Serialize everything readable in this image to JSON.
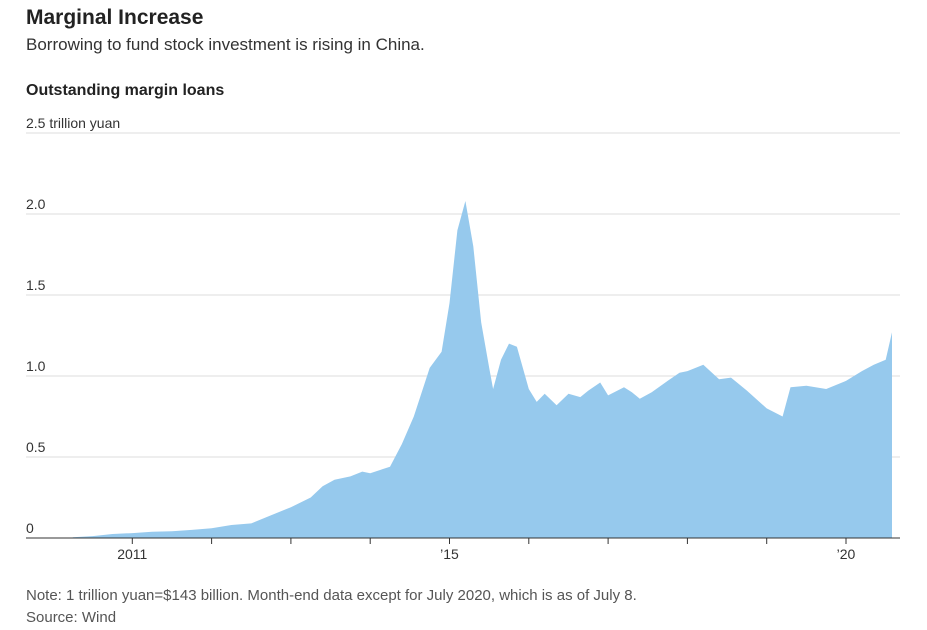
{
  "header": {
    "title": "Marginal Increase",
    "subtitle": "Borrowing to fund stock investment is rising in China."
  },
  "footer": {
    "note": "Note: 1 trillion yuan=$143 billion. Month-end data except for July 2020, which is as of July 8.",
    "source": "Source: Wind"
  },
  "chart_data": {
    "type": "area",
    "title": "Outstanding margin loans",
    "ylabel": "trillion yuan",
    "ylim": [
      0,
      2.5
    ],
    "yticks": [
      {
        "value": 0,
        "label": "0"
      },
      {
        "value": 0.5,
        "label": "0.5"
      },
      {
        "value": 1.0,
        "label": "1.0"
      },
      {
        "value": 1.5,
        "label": "1.5"
      },
      {
        "value": 2.0,
        "label": "2.0"
      },
      {
        "value": 2.5,
        "label": "2.5 trillion yuan"
      }
    ],
    "xlim": [
      2010.0,
      2020.58
    ],
    "xticks": [
      {
        "value": 2011,
        "label": "2011"
      },
      {
        "value": 2012,
        "label": ""
      },
      {
        "value": 2013,
        "label": ""
      },
      {
        "value": 2014,
        "label": ""
      },
      {
        "value": 2015,
        "label": "’15"
      },
      {
        "value": 2016,
        "label": ""
      },
      {
        "value": 2017,
        "label": ""
      },
      {
        "value": 2018,
        "label": ""
      },
      {
        "value": 2019,
        "label": ""
      },
      {
        "value": 2020,
        "label": "’20"
      }
    ],
    "grid": true,
    "color": "#96c9ed",
    "series": [
      {
        "name": "Outstanding margin loans",
        "x": [
          2010.25,
          2010.5,
          2010.75,
          2011.0,
          2011.25,
          2011.5,
          2011.75,
          2012.0,
          2012.25,
          2012.5,
          2012.75,
          2013.0,
          2013.25,
          2013.4,
          2013.55,
          2013.75,
          2013.9,
          2014.0,
          2014.25,
          2014.4,
          2014.55,
          2014.75,
          2014.9,
          2015.0,
          2015.1,
          2015.2,
          2015.3,
          2015.4,
          2015.5,
          2015.55,
          2015.65,
          2015.75,
          2015.85,
          2016.0,
          2016.1,
          2016.2,
          2016.35,
          2016.5,
          2016.65,
          2016.75,
          2016.9,
          2017.0,
          2017.2,
          2017.3,
          2017.4,
          2017.55,
          2017.75,
          2017.9,
          2018.0,
          2018.2,
          2018.4,
          2018.55,
          2018.75,
          2019.0,
          2019.2,
          2019.3,
          2019.5,
          2019.75,
          2020.0,
          2020.2,
          2020.35,
          2020.5,
          2020.58
        ],
        "values": [
          0.005,
          0.012,
          0.025,
          0.03,
          0.038,
          0.042,
          0.05,
          0.06,
          0.08,
          0.09,
          0.14,
          0.19,
          0.25,
          0.32,
          0.36,
          0.38,
          0.41,
          0.4,
          0.44,
          0.58,
          0.75,
          1.05,
          1.15,
          1.45,
          1.9,
          2.08,
          1.8,
          1.33,
          1.05,
          0.92,
          1.1,
          1.2,
          1.18,
          0.92,
          0.84,
          0.89,
          0.82,
          0.89,
          0.87,
          0.91,
          0.96,
          0.88,
          0.93,
          0.9,
          0.86,
          0.9,
          0.97,
          1.02,
          1.03,
          1.07,
          0.98,
          0.99,
          0.91,
          0.8,
          0.75,
          0.93,
          0.94,
          0.92,
          0.97,
          1.03,
          1.07,
          1.1,
          1.27
        ]
      }
    ]
  }
}
